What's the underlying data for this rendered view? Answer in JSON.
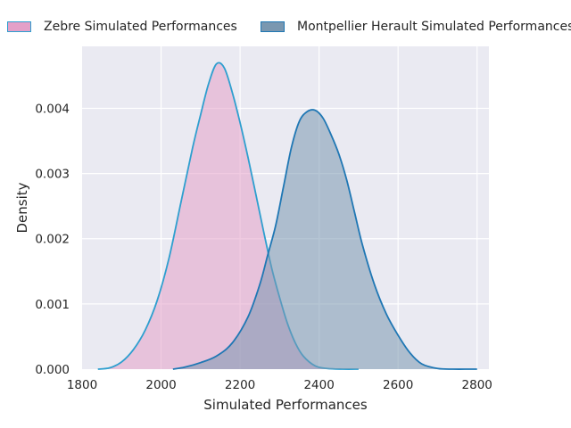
{
  "chart_data": {
    "type": "area",
    "title": "",
    "xlabel": "Simulated Performances",
    "ylabel": "Density",
    "xlim": [
      1800,
      2830
    ],
    "ylim": [
      0,
      0.00495
    ],
    "xticks": [
      1800,
      2000,
      2200,
      2400,
      2600,
      2800
    ],
    "xtick_labels": [
      "1800",
      "2000",
      "2200",
      "2400",
      "2600",
      "2800"
    ],
    "yticks": [
      0,
      0.001,
      0.002,
      0.003,
      0.004
    ],
    "ytick_labels": [
      "0.000",
      "0.001",
      "0.002",
      "0.003",
      "0.004"
    ],
    "grid": true,
    "legend_position": "top",
    "series": [
      {
        "name": "Zebre Simulated Performances",
        "fill_color": "#e3a0c8",
        "line_color": "#2e9fcf",
        "x": [
          1840,
          1870,
          1900,
          1930,
          1960,
          1990,
          2020,
          2050,
          2080,
          2100,
          2120,
          2140,
          2160,
          2180,
          2200,
          2220,
          2240,
          2260,
          2280,
          2300,
          2320,
          2340,
          2360,
          2390,
          2420,
          2460,
          2500
        ],
        "y": [
          0.0,
          2e-05,
          0.00011,
          0.0003,
          0.0006,
          0.00105,
          0.0017,
          0.00255,
          0.0034,
          0.0039,
          0.00437,
          0.00468,
          0.00462,
          0.00425,
          0.00378,
          0.00325,
          0.00268,
          0.0021,
          0.00155,
          0.0011,
          0.0007,
          0.0004,
          0.0002,
          5e-05,
          1e-05,
          0.0,
          0.0
        ]
      },
      {
        "name": "Montpellier Herault Simulated Performances",
        "fill_color": "#7a97b0",
        "line_color": "#1f77b4",
        "x": [
          2030,
          2060,
          2100,
          2140,
          2180,
          2220,
          2250,
          2270,
          2290,
          2310,
          2330,
          2350,
          2370,
          2390,
          2410,
          2430,
          2450,
          2470,
          2490,
          2510,
          2540,
          2570,
          2600,
          2630,
          2660,
          2700,
          2740,
          2780,
          2800
        ],
        "y": [
          0.0,
          3e-05,
          0.0001,
          0.0002,
          0.0004,
          0.0008,
          0.0013,
          0.00175,
          0.0022,
          0.0028,
          0.0034,
          0.0038,
          0.00395,
          0.00397,
          0.00385,
          0.0036,
          0.0033,
          0.0029,
          0.0024,
          0.0019,
          0.0013,
          0.00085,
          0.00052,
          0.00025,
          8e-05,
          1e-05,
          0.0,
          0.0,
          0.0
        ]
      }
    ]
  }
}
